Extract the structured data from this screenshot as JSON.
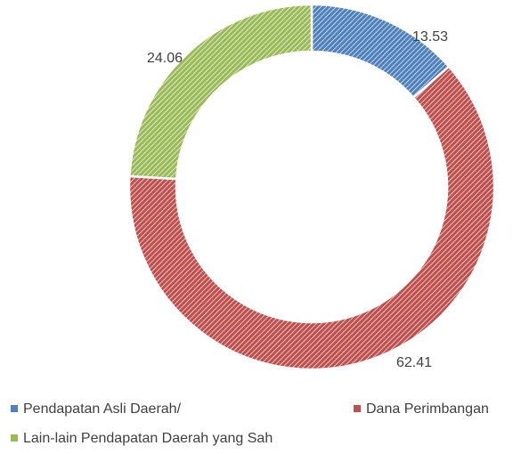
{
  "chart_data": {
    "type": "donut",
    "categories": [
      "Pendapatan Asli Daerah/",
      "Dana Perimbangan",
      "Lain-lain Pendapatan Daerah yang Sah"
    ],
    "values": [
      13.53,
      62.41,
      24.06
    ],
    "colors": [
      "#4f81bd",
      "#c0504d",
      "#9bbb59"
    ],
    "hatched": true
  }
}
